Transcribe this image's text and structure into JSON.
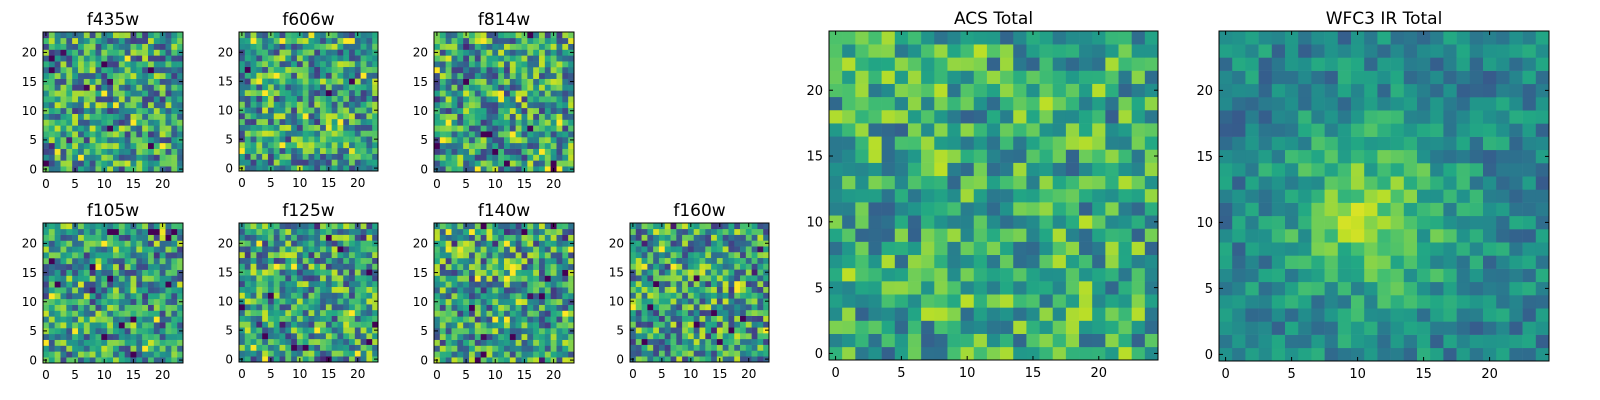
{
  "figure": {
    "colormap": "viridis",
    "colors": {
      "axis": "#000000",
      "background": "#ffffff"
    },
    "seed_note_hidden": false
  },
  "chart_data": [
    {
      "type": "heatmap",
      "title": "f435w",
      "xlabel": "",
      "ylabel": "",
      "grid_size": 24,
      "xlim": [
        0,
        24
      ],
      "ylim": [
        0,
        24
      ],
      "xticks": [
        0,
        5,
        10,
        15,
        20
      ],
      "yticks": [
        0,
        5,
        10,
        15,
        20
      ],
      "grid": false
    },
    {
      "type": "heatmap",
      "title": "f606w",
      "xlabel": "",
      "ylabel": "",
      "grid_size": 24,
      "xlim": [
        0,
        24
      ],
      "ylim": [
        0,
        24
      ],
      "xticks": [
        0,
        5,
        10,
        15,
        20
      ],
      "yticks": [
        0,
        5,
        10,
        15,
        20
      ],
      "grid": false
    },
    {
      "type": "heatmap",
      "title": "f814w",
      "xlabel": "",
      "ylabel": "",
      "grid_size": 24,
      "xlim": [
        0,
        24
      ],
      "ylim": [
        0,
        24
      ],
      "xticks": [
        0,
        5,
        10,
        15,
        20
      ],
      "yticks": [
        0,
        5,
        10,
        15,
        20
      ],
      "grid": false
    },
    {
      "type": "heatmap",
      "title": "f105w",
      "xlabel": "",
      "ylabel": "",
      "grid_size": 24,
      "xlim": [
        0,
        24
      ],
      "ylim": [
        0,
        24
      ],
      "xticks": [
        0,
        5,
        10,
        15,
        20
      ],
      "yticks": [
        0,
        5,
        10,
        15,
        20
      ],
      "grid": false
    },
    {
      "type": "heatmap",
      "title": "f125w",
      "xlabel": "",
      "ylabel": "",
      "grid_size": 24,
      "xlim": [
        0,
        24
      ],
      "ylim": [
        0,
        24
      ],
      "xticks": [
        0,
        5,
        10,
        15,
        20
      ],
      "yticks": [
        0,
        5,
        10,
        15,
        20
      ],
      "grid": false
    },
    {
      "type": "heatmap",
      "title": "f140w",
      "xlabel": "",
      "ylabel": "",
      "grid_size": 24,
      "xlim": [
        0,
        24
      ],
      "ylim": [
        0,
        24
      ],
      "xticks": [
        0,
        5,
        10,
        15,
        20
      ],
      "yticks": [
        0,
        5,
        10,
        15,
        20
      ],
      "grid": false
    },
    {
      "type": "heatmap",
      "title": "f160w",
      "xlabel": "",
      "ylabel": "",
      "grid_size": 24,
      "xlim": [
        0,
        24
      ],
      "ylim": [
        0,
        24
      ],
      "xticks": [
        0,
        5,
        10,
        15,
        20
      ],
      "yticks": [
        0,
        5,
        10,
        15,
        20
      ],
      "grid": false
    },
    {
      "type": "heatmap",
      "title": "ACS Total",
      "xlabel": "",
      "ylabel": "",
      "grid_size": 25,
      "xlim": [
        0,
        25
      ],
      "ylim": [
        0,
        25
      ],
      "xticks": [
        0,
        5,
        10,
        15,
        20
      ],
      "yticks": [
        0,
        5,
        10,
        15,
        20
      ],
      "grid": false
    },
    {
      "type": "heatmap",
      "title": "WFC3 IR Total",
      "xlabel": "",
      "ylabel": "",
      "grid_size": 25,
      "xlim": [
        0,
        25
      ],
      "ylim": [
        0,
        25
      ],
      "xticks": [
        0,
        5,
        10,
        15,
        20
      ],
      "yticks": [
        0,
        5,
        10,
        15,
        20
      ],
      "grid": false
    }
  ]
}
